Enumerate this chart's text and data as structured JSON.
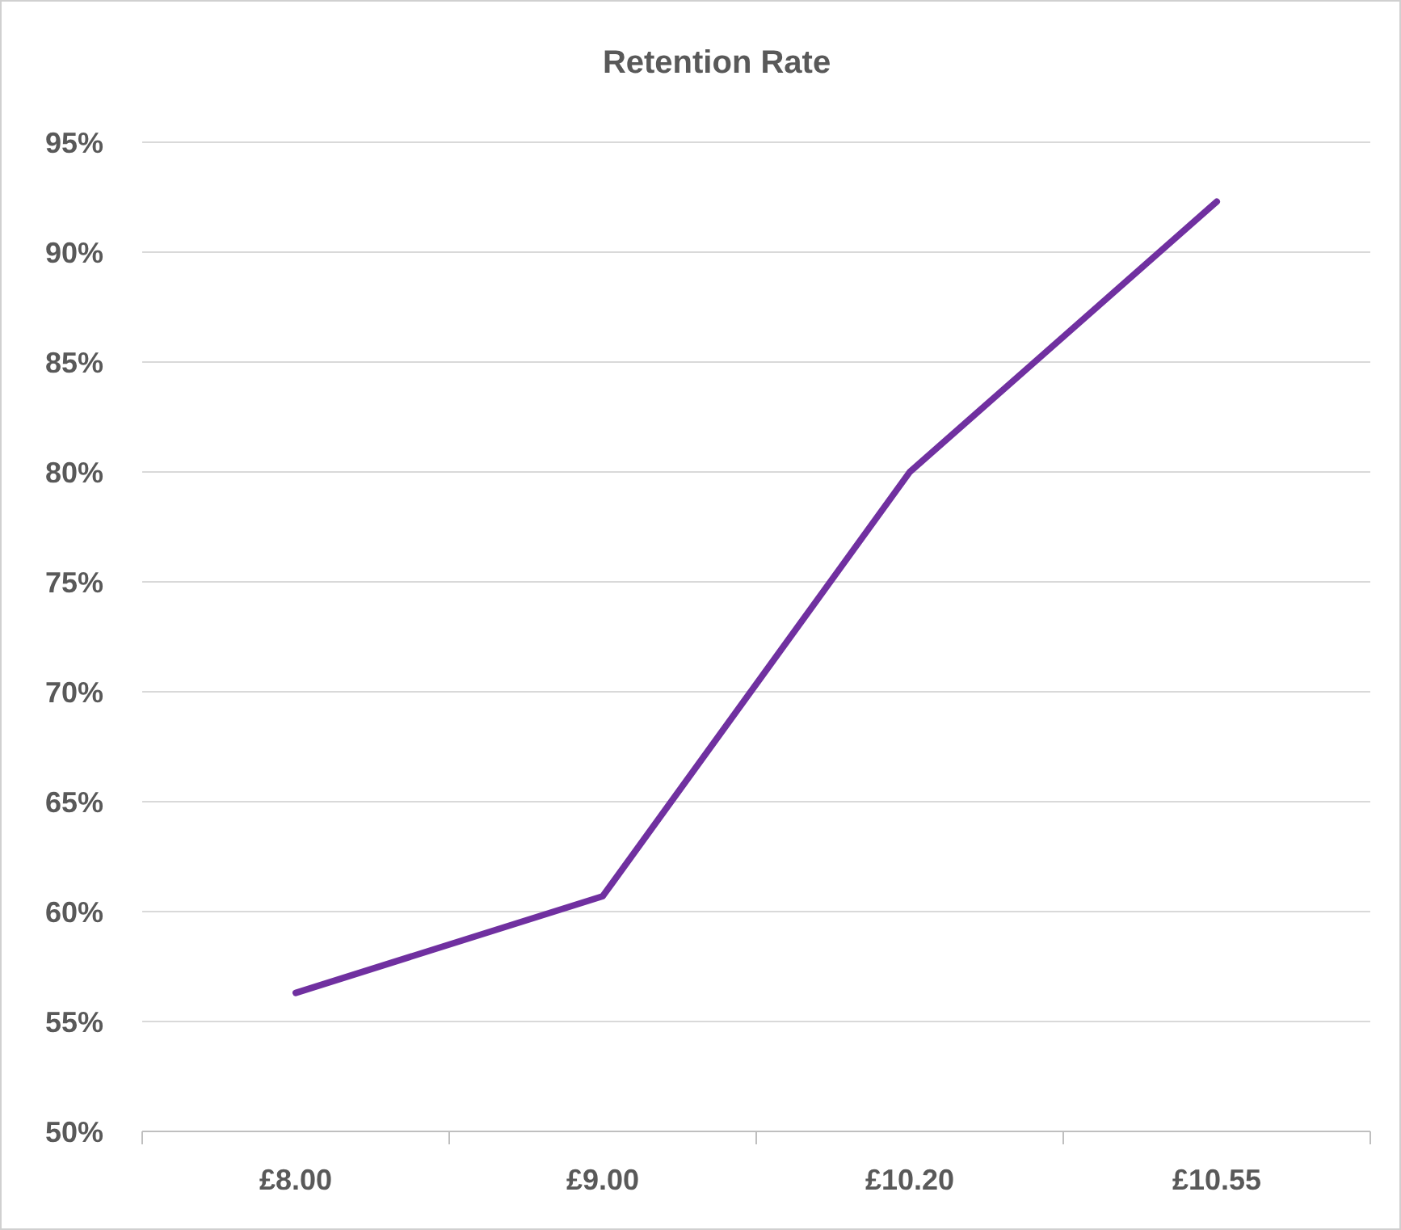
{
  "chart_data": {
    "type": "line",
    "title": "Retention Rate",
    "categories": [
      "£8.00",
      "£9.00",
      "£10.20",
      "£10.55"
    ],
    "series": [
      {
        "color": "#7030a0",
        "values": [
          56.3,
          60.7,
          80,
          92.3
        ]
      }
    ],
    "ylim": [
      50,
      95
    ],
    "yticks": [
      {
        "value": 50,
        "label": "50%"
      },
      {
        "value": 55,
        "label": "55%"
      },
      {
        "value": 60,
        "label": "60%"
      },
      {
        "value": 65,
        "label": "65%"
      },
      {
        "value": 70,
        "label": "70%"
      },
      {
        "value": 75,
        "label": "75%"
      },
      {
        "value": 80,
        "label": "80%"
      },
      {
        "value": 85,
        "label": "85%"
      },
      {
        "value": 90,
        "label": "90%"
      },
      {
        "value": 95,
        "label": "95%"
      }
    ],
    "grid": "y",
    "marker": "none",
    "line_style": "solid"
  }
}
